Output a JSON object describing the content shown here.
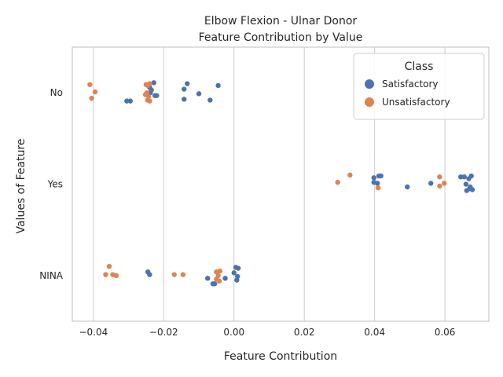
{
  "chart_data": {
    "type": "scatter",
    "title": "Elbow Flexion - Ulnar Donor",
    "subtitle": "Feature Contribution by Value",
    "xlabel": "Feature Contribution",
    "ylabel": "Values of Feature",
    "xlim": [
      -0.046,
      0.0725
    ],
    "x_ticks": [
      -0.04,
      -0.02,
      0.0,
      0.02,
      0.04,
      0.06
    ],
    "x_tick_labels": [
      "−0.04",
      "−0.02",
      "0.00",
      "0.02",
      "0.04",
      "0.06"
    ],
    "categories": [
      "No",
      "Yes",
      "NINA"
    ],
    "grid": true,
    "legend": {
      "title": "Class",
      "placement": "top-right",
      "entries": [
        "Satisfactory",
        "Unsatisfactory"
      ]
    },
    "series": [
      {
        "name": "Satisfactory",
        "color": "#4c72b0",
        "points": [
          {
            "cat": "No",
            "x": -0.0305,
            "j": 0.09
          },
          {
            "cat": "No",
            "x": -0.0295,
            "j": 0.09
          },
          {
            "cat": "No",
            "x": -0.0245,
            "j": 0.02
          },
          {
            "cat": "No",
            "x": -0.024,
            "j": -0.06
          },
          {
            "cat": "No",
            "x": -0.0235,
            "j": -0.03
          },
          {
            "cat": "No",
            "x": -0.0228,
            "j": -0.11
          },
          {
            "cat": "No",
            "x": -0.0225,
            "j": 0.03
          },
          {
            "cat": "No",
            "x": -0.022,
            "j": 0.03
          },
          {
            "cat": "No",
            "x": -0.0142,
            "j": -0.04
          },
          {
            "cat": "No",
            "x": -0.0142,
            "j": 0.07
          },
          {
            "cat": "No",
            "x": -0.0133,
            "j": -0.1
          },
          {
            "cat": "No",
            "x": -0.01,
            "j": 0.01
          },
          {
            "cat": "No",
            "x": -0.0068,
            "j": 0.08
          },
          {
            "cat": "No",
            "x": -0.0045,
            "j": -0.08
          },
          {
            "cat": "No",
            "x": -0.0238,
            "j": 0.0
          },
          {
            "cat": "Yes",
            "x": 0.0398,
            "j": -0.07
          },
          {
            "cat": "Yes",
            "x": 0.0398,
            "j": -0.02
          },
          {
            "cat": "Yes",
            "x": 0.0408,
            "j": -0.01
          },
          {
            "cat": "Yes",
            "x": 0.0412,
            "j": -0.09
          },
          {
            "cat": "Yes",
            "x": 0.0418,
            "j": -0.09
          },
          {
            "cat": "Yes",
            "x": 0.0493,
            "j": 0.03
          },
          {
            "cat": "Yes",
            "x": 0.056,
            "j": -0.01
          },
          {
            "cat": "Yes",
            "x": 0.0645,
            "j": -0.08
          },
          {
            "cat": "Yes",
            "x": 0.0655,
            "j": -0.08
          },
          {
            "cat": "Yes",
            "x": 0.066,
            "j": 0.0
          },
          {
            "cat": "Yes",
            "x": 0.0662,
            "j": 0.07
          },
          {
            "cat": "Yes",
            "x": 0.0668,
            "j": -0.06
          },
          {
            "cat": "Yes",
            "x": 0.0672,
            "j": 0.03
          },
          {
            "cat": "Yes",
            "x": 0.0675,
            "j": -0.09
          },
          {
            "cat": "Yes",
            "x": 0.0678,
            "j": 0.06
          },
          {
            "cat": "Yes",
            "x": 0.067,
            "j": 0.05
          },
          {
            "cat": "NINA",
            "x": -0.0245,
            "j": -0.04
          },
          {
            "cat": "NINA",
            "x": -0.024,
            "j": -0.01
          },
          {
            "cat": "NINA",
            "x": -0.0075,
            "j": 0.03
          },
          {
            "cat": "NINA",
            "x": -0.006,
            "j": 0.09
          },
          {
            "cat": "NINA",
            "x": -0.0055,
            "j": 0.09
          },
          {
            "cat": "NINA",
            "x": -0.0025,
            "j": 0.03
          },
          {
            "cat": "NINA",
            "x": 0.0,
            "j": -0.03
          },
          {
            "cat": "NINA",
            "x": 0.0005,
            "j": -0.09
          },
          {
            "cat": "NINA",
            "x": 0.001,
            "j": 0.01
          },
          {
            "cat": "NINA",
            "x": 0.0012,
            "j": -0.08
          },
          {
            "cat": "NINA",
            "x": 0.0008,
            "j": 0.05
          }
        ]
      },
      {
        "name": "Unsatisfactory",
        "color": "#dd8452",
        "points": [
          {
            "cat": "No",
            "x": -0.041,
            "j": -0.09
          },
          {
            "cat": "No",
            "x": -0.0405,
            "j": 0.06
          },
          {
            "cat": "No",
            "x": -0.0395,
            "j": -0.01
          },
          {
            "cat": "No",
            "x": -0.025,
            "j": -0.09
          },
          {
            "cat": "No",
            "x": -0.0245,
            "j": -0.08
          },
          {
            "cat": "No",
            "x": -0.024,
            "j": -0.1
          },
          {
            "cat": "No",
            "x": -0.0248,
            "j": 0.0
          },
          {
            "cat": "No",
            "x": -0.0252,
            "j": 0.02
          },
          {
            "cat": "No",
            "x": -0.0243,
            "j": 0.04
          },
          {
            "cat": "No",
            "x": -0.0246,
            "j": 0.08
          },
          {
            "cat": "No",
            "x": -0.024,
            "j": 0.09
          },
          {
            "cat": "Yes",
            "x": 0.0295,
            "j": -0.02
          },
          {
            "cat": "Yes",
            "x": 0.033,
            "j": -0.1
          },
          {
            "cat": "Yes",
            "x": 0.041,
            "j": 0.04
          },
          {
            "cat": "Yes",
            "x": 0.0585,
            "j": -0.08
          },
          {
            "cat": "Yes",
            "x": 0.0585,
            "j": 0.02
          },
          {
            "cat": "Yes",
            "x": 0.0598,
            "j": -0.01
          },
          {
            "cat": "NINA",
            "x": -0.0355,
            "j": -0.1
          },
          {
            "cat": "NINA",
            "x": -0.0365,
            "j": -0.01
          },
          {
            "cat": "NINA",
            "x": -0.0345,
            "j": -0.01
          },
          {
            "cat": "NINA",
            "x": -0.0335,
            "j": 0.0
          },
          {
            "cat": "NINA",
            "x": -0.017,
            "j": -0.01
          },
          {
            "cat": "NINA",
            "x": -0.0145,
            "j": -0.01
          },
          {
            "cat": "NINA",
            "x": -0.005,
            "j": -0.04
          },
          {
            "cat": "NINA",
            "x": -0.0045,
            "j": 0.0
          },
          {
            "cat": "NINA",
            "x": -0.005,
            "j": 0.04
          },
          {
            "cat": "NINA",
            "x": -0.0042,
            "j": 0.06
          },
          {
            "cat": "NINA",
            "x": -0.004,
            "j": -0.05
          }
        ]
      }
    ]
  }
}
